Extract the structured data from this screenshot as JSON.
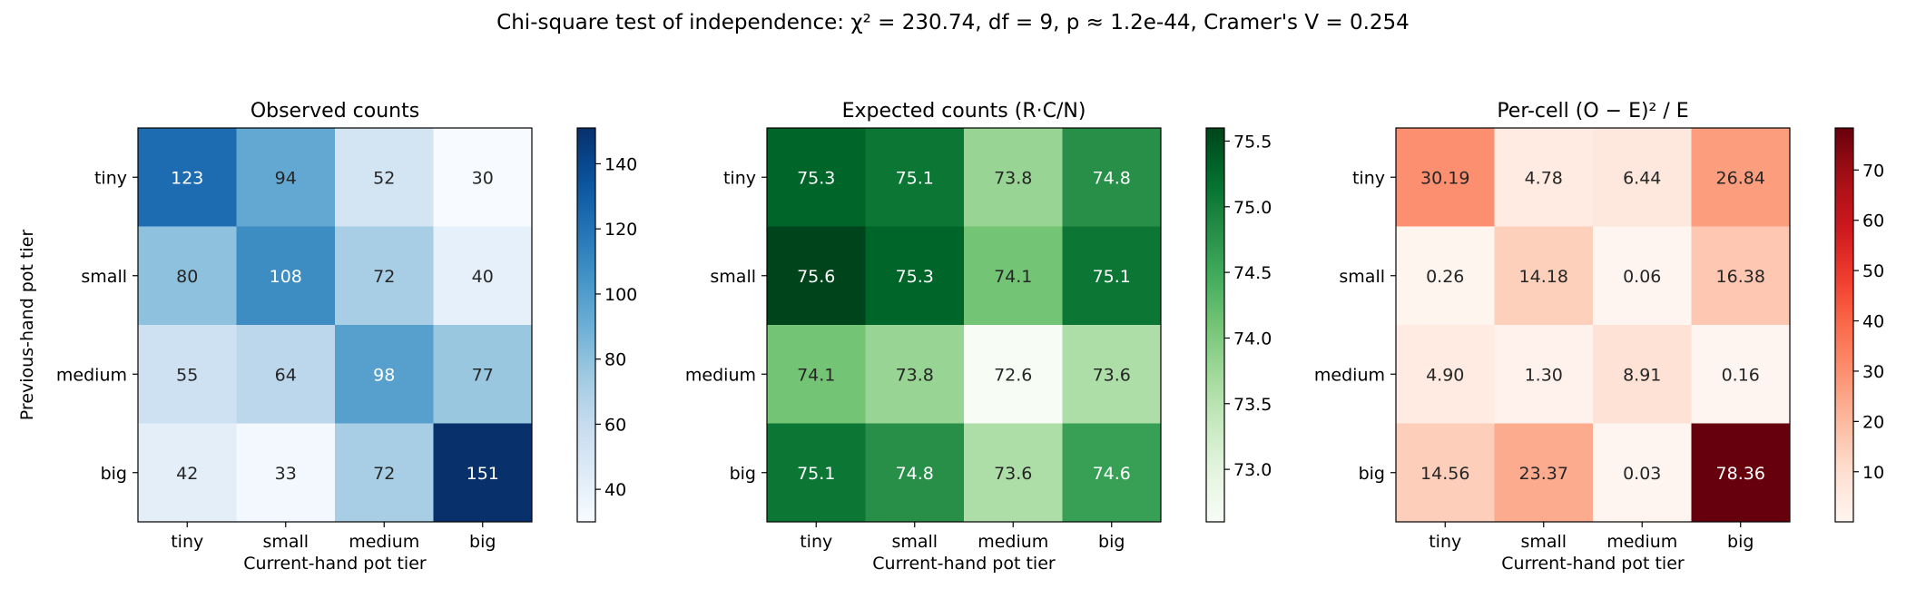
{
  "suptitle": "Chi-square test of independence: χ² = 230.74, df = 9, p ≈ 1.2e-44, Cramer's V = 0.254",
  "chart_data": [
    {
      "type": "heatmap",
      "title": "Observed counts",
      "xlabel": "Current-hand pot tier",
      "ylabel": "Previous-hand pot tier",
      "x_categories": [
        "tiny",
        "small",
        "medium",
        "big"
      ],
      "y_categories": [
        "tiny",
        "small",
        "medium",
        "big"
      ],
      "values": [
        [
          123,
          94,
          52,
          30
        ],
        [
          80,
          108,
          72,
          40
        ],
        [
          55,
          64,
          98,
          77
        ],
        [
          42,
          33,
          72,
          151
        ]
      ],
      "labels": [
        [
          "123",
          "94",
          "52",
          "30"
        ],
        [
          "80",
          "108",
          "72",
          "40"
        ],
        [
          "55",
          "64",
          "98",
          "77"
        ],
        [
          "42",
          "33",
          "72",
          "151"
        ]
      ],
      "colormap": "Blues",
      "colorbar_range": [
        30,
        151
      ],
      "colorbar_ticks": [
        40,
        60,
        80,
        100,
        120,
        140
      ]
    },
    {
      "type": "heatmap",
      "title": "Expected counts (R·C/N)",
      "xlabel": "Current-hand pot tier",
      "ylabel": "",
      "x_categories": [
        "tiny",
        "small",
        "medium",
        "big"
      ],
      "y_categories": [
        "tiny",
        "small",
        "medium",
        "big"
      ],
      "values": [
        [
          75.3,
          75.1,
          73.8,
          74.8
        ],
        [
          75.6,
          75.3,
          74.1,
          75.1
        ],
        [
          74.1,
          73.8,
          72.6,
          73.6
        ],
        [
          75.1,
          74.8,
          73.6,
          74.6
        ]
      ],
      "labels": [
        [
          "75.3",
          "75.1",
          "73.8",
          "74.8"
        ],
        [
          "75.6",
          "75.3",
          "74.1",
          "75.1"
        ],
        [
          "74.1",
          "73.8",
          "72.6",
          "73.6"
        ],
        [
          "75.1",
          "74.8",
          "73.6",
          "74.6"
        ]
      ],
      "colormap": "Greens",
      "colorbar_range": [
        72.6,
        75.6
      ],
      "colorbar_ticks": [
        73.0,
        73.5,
        74.0,
        74.5,
        75.0,
        75.5
      ],
      "colorbar_tick_labels": [
        "73.0",
        "73.5",
        "74.0",
        "74.5",
        "75.0",
        "75.5"
      ]
    },
    {
      "type": "heatmap",
      "title": "Per-cell (O − E)² / E",
      "xlabel": "Current-hand pot tier",
      "ylabel": "",
      "x_categories": [
        "tiny",
        "small",
        "medium",
        "big"
      ],
      "y_categories": [
        "tiny",
        "small",
        "medium",
        "big"
      ],
      "values": [
        [
          30.19,
          4.78,
          6.44,
          26.84
        ],
        [
          0.26,
          14.18,
          0.06,
          16.38
        ],
        [
          4.9,
          1.3,
          8.91,
          0.16
        ],
        [
          14.56,
          23.37,
          0.03,
          78.36
        ]
      ],
      "labels": [
        [
          "30.19",
          "4.78",
          "6.44",
          "26.84"
        ],
        [
          "0.26",
          "14.18",
          "0.06",
          "16.38"
        ],
        [
          "4.90",
          "1.30",
          "8.91",
          "0.16"
        ],
        [
          "14.56",
          "23.37",
          "0.03",
          "78.36"
        ]
      ],
      "colormap": "Reds",
      "colorbar_range": [
        0.03,
        78.36
      ],
      "colorbar_ticks": [
        10,
        20,
        30,
        40,
        50,
        60,
        70
      ]
    }
  ]
}
